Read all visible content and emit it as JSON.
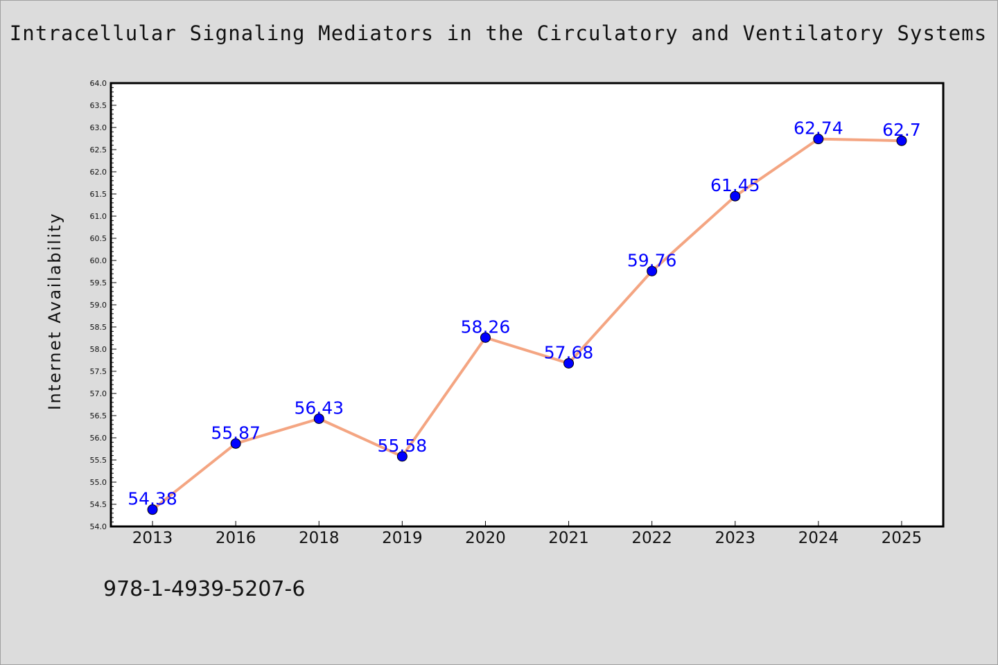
{
  "footer": {
    "isbn": "978-1-4939-5207-6"
  },
  "colors": {
    "background": "#dcdcdc",
    "plot_area": "#ffffff",
    "line": "#f4a582",
    "marker": "#0000ff",
    "label": "#0000ff"
  },
  "chart_data": {
    "type": "line",
    "title": "Intracellular Signaling Mediators in the Circulatory and Ventilatory Systems",
    "xlabel": "",
    "ylabel": "Internet Availability",
    "categories": [
      "2013",
      "2016",
      "2018",
      "2019",
      "2020",
      "2021",
      "2022",
      "2023",
      "2024",
      "2025"
    ],
    "series": [
      {
        "values": [
          54.38,
          55.87,
          56.43,
          55.58,
          58.26,
          57.68,
          59.76,
          61.45,
          62.74,
          62.7
        ],
        "labels": [
          "54.38",
          "55.87",
          "56.43",
          "55.58",
          "58.26",
          "57.68",
          "59.76",
          "61.45",
          "62.74",
          "62.7"
        ],
        "marker": "circle"
      }
    ],
    "ylim": [
      54.0,
      64.0
    ],
    "yticks": [
      "54.0",
      "54.5",
      "55.0",
      "55.5",
      "56.0",
      "56.5",
      "57.0",
      "57.5",
      "58.0",
      "58.5",
      "59.0",
      "59.5",
      "60.0",
      "60.5",
      "61.0",
      "61.5",
      "62.0",
      "62.5",
      "63.0",
      "63.5",
      "64.0"
    ],
    "grid": false,
    "legend": "none"
  }
}
